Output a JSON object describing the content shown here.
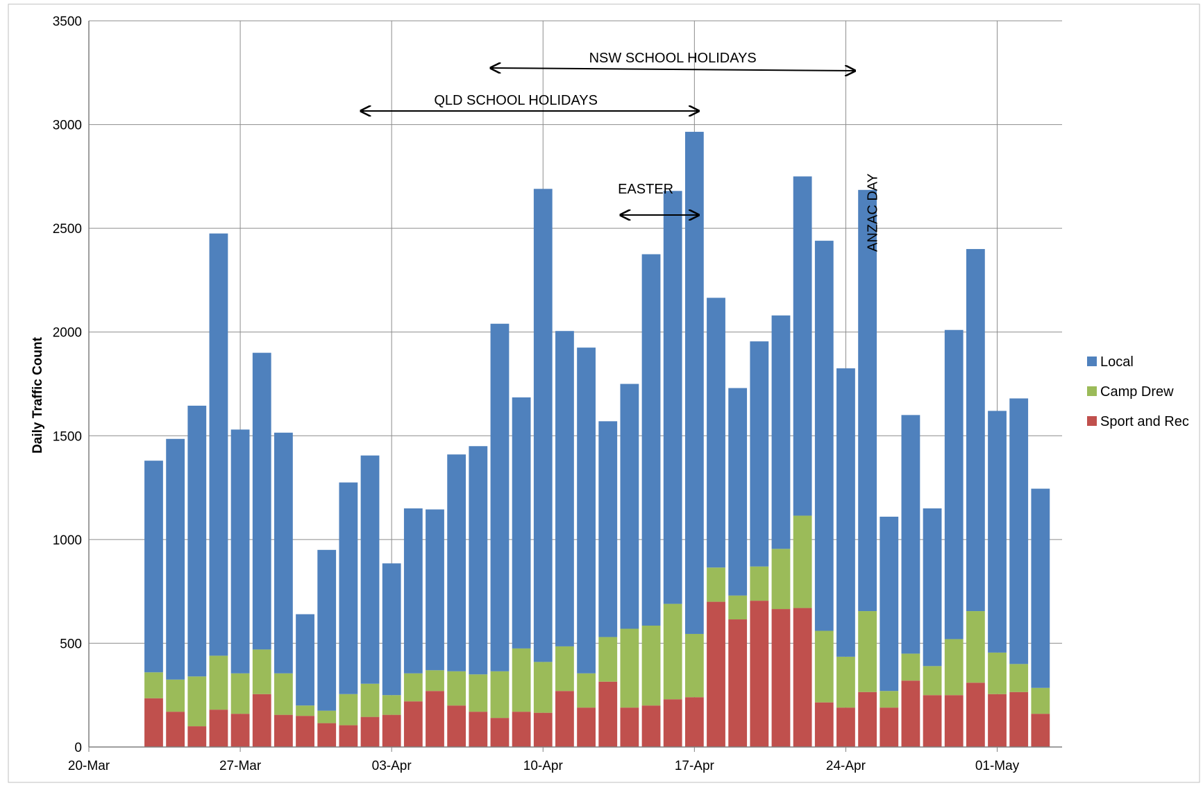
{
  "chart_data": {
    "type": "bar",
    "stacked": true,
    "title": "",
    "xlabel": "",
    "ylabel": "Daily Traffic Count",
    "ylim": [
      0,
      3500
    ],
    "y_ticks": [
      0,
      500,
      1000,
      1500,
      2000,
      2500,
      3000,
      3500
    ],
    "x_range_days": [
      "20-Mar",
      "04-May"
    ],
    "x_tick_labels": [
      "20-Mar",
      "27-Mar",
      "03-Apr",
      "10-Apr",
      "17-Apr",
      "24-Apr",
      "01-May"
    ],
    "grid": true,
    "legend_position": "right",
    "categories": [
      "23-Mar",
      "24-Mar",
      "25-Mar",
      "26-Mar",
      "27-Mar",
      "28-Mar",
      "29-Mar",
      "30-Mar",
      "31-Mar",
      "01-Apr",
      "02-Apr",
      "03-Apr",
      "04-Apr",
      "05-Apr",
      "06-Apr",
      "07-Apr",
      "08-Apr",
      "09-Apr",
      "10-Apr",
      "11-Apr",
      "12-Apr",
      "13-Apr",
      "14-Apr",
      "15-Apr",
      "16-Apr",
      "17-Apr",
      "18-Apr",
      "19-Apr",
      "20-Apr",
      "21-Apr",
      "22-Apr",
      "23-Apr",
      "24-Apr",
      "25-Apr",
      "26-Apr",
      "27-Apr",
      "28-Apr",
      "29-Apr",
      "30-Apr",
      "01-May",
      "02-May",
      "03-May"
    ],
    "series": [
      {
        "name": "Sport and Rec",
        "color": "#c0504d",
        "values": [
          235,
          170,
          100,
          180,
          160,
          255,
          155,
          150,
          115,
          105,
          145,
          155,
          220,
          270,
          200,
          170,
          140,
          170,
          165,
          270,
          190,
          315,
          190,
          200,
          230,
          240,
          700,
          615,
          705,
          665,
          670,
          215,
          190,
          265,
          190,
          320,
          250,
          250,
          310,
          255,
          265,
          160
        ]
      },
      {
        "name": "Camp Drew",
        "color": "#9bbb59",
        "values": [
          125,
          155,
          240,
          260,
          195,
          215,
          200,
          50,
          60,
          150,
          160,
          95,
          135,
          100,
          165,
          180,
          225,
          305,
          245,
          215,
          165,
          215,
          380,
          385,
          460,
          305,
          165,
          115,
          165,
          290,
          445,
          345,
          245,
          390,
          80,
          130,
          140,
          270,
          345,
          200,
          135,
          125
        ]
      },
      {
        "name": "Local",
        "color": "#4f81bd",
        "values": [
          1020,
          1160,
          1305,
          2035,
          1175,
          1430,
          1160,
          440,
          775,
          1020,
          1100,
          635,
          795,
          775,
          1045,
          1100,
          1675,
          1210,
          2280,
          1520,
          1570,
          1040,
          1180,
          1790,
          1990,
          2420,
          1300,
          1000,
          1085,
          1125,
          1635,
          1880,
          1390,
          2030,
          840,
          1150,
          760,
          1490,
          1745,
          1165,
          1280,
          960
        ]
      }
    ],
    "annotations": [
      {
        "text": "NSW SCHOOL HOLIDAYS",
        "from": "08-Apr",
        "to": "24-Apr"
      },
      {
        "text": "QLD SCHOOL HOLIDAYS",
        "from": "02-Apr",
        "to": "17-Apr"
      },
      {
        "text": "EASTER",
        "from": "14-Apr",
        "to": "17-Apr"
      },
      {
        "text": "ANZAC DAY",
        "at": "25-Apr"
      }
    ]
  }
}
